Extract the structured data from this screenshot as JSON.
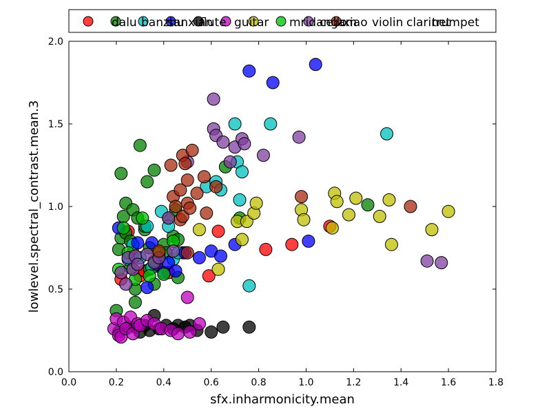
{
  "chart_data": {
    "type": "scatter",
    "title": "",
    "xlabel": "sfx.inharmonicity.mean",
    "ylabel": "lowlevel.spectral_contrast.mean.3",
    "xlim": [
      0.0,
      1.8
    ],
    "ylim": [
      0.0,
      2.0
    ],
    "xticks": [
      "0.0",
      "0.2",
      "0.4",
      "0.6",
      "0.8",
      "1.0",
      "1.2",
      "1.4",
      "1.6",
      "1.8"
    ],
    "yticks": [
      "0.0",
      "0.5",
      "1.0",
      "1.5",
      "2.0"
    ],
    "grid": false,
    "legend_position": "top",
    "series": [
      {
        "name": "dalu",
        "color": "#ff0000",
        "points": [
          [
            0.22,
            0.56
          ],
          [
            0.25,
            0.85
          ],
          [
            0.27,
            0.72
          ],
          [
            0.3,
            0.58
          ],
          [
            0.32,
            0.61
          ],
          [
            0.37,
            0.64
          ],
          [
            0.42,
            0.6
          ],
          [
            0.48,
            0.72
          ],
          [
            0.59,
            0.58
          ],
          [
            0.63,
            0.85
          ],
          [
            0.83,
            0.74
          ],
          [
            0.94,
            0.77
          ],
          [
            1.1,
            0.88
          ]
        ]
      },
      {
        "name": "banzhu",
        "color": "#008000",
        "points": [
          [
            0.2,
            0.37
          ],
          [
            0.21,
            0.74
          ],
          [
            0.22,
            0.81
          ],
          [
            0.22,
            1.2
          ],
          [
            0.23,
            0.94
          ],
          [
            0.24,
            0.84
          ],
          [
            0.24,
            1.02
          ],
          [
            0.26,
            0.79
          ],
          [
            0.26,
            0.63
          ],
          [
            0.27,
            0.98
          ],
          [
            0.28,
            0.42
          ],
          [
            0.28,
            0.5
          ],
          [
            0.29,
            0.93
          ],
          [
            0.3,
            1.37
          ],
          [
            0.32,
            0.86
          ],
          [
            0.32,
            0.88
          ],
          [
            0.33,
            1.15
          ],
          [
            0.34,
            0.75
          ],
          [
            0.34,
            0.62
          ],
          [
            0.36,
            0.53
          ],
          [
            0.36,
            1.22
          ],
          [
            0.38,
            0.69
          ],
          [
            0.4,
            0.77
          ],
          [
            0.41,
            0.72
          ],
          [
            0.42,
            0.93
          ],
          [
            0.44,
            0.82
          ],
          [
            0.45,
            0.98
          ],
          [
            0.46,
            0.57
          ],
          [
            0.46,
            0.8
          ],
          [
            0.66,
            1.24
          ],
          [
            0.72,
            0.93
          ],
          [
            1.26,
            1.01
          ]
        ]
      },
      {
        "name": "sanxian",
        "color": "#00bfbf",
        "points": [
          [
            0.25,
            0.68
          ],
          [
            0.27,
            0.77
          ],
          [
            0.3,
            0.69
          ],
          [
            0.33,
            0.88
          ],
          [
            0.35,
            0.63
          ],
          [
            0.39,
            0.97
          ],
          [
            0.42,
            0.88
          ],
          [
            0.44,
            0.68
          ],
          [
            0.46,
            0.72
          ],
          [
            0.58,
            1.12
          ],
          [
            0.62,
            1.15
          ],
          [
            0.64,
            1.1
          ],
          [
            0.7,
            1.5
          ],
          [
            0.71,
            1.27
          ],
          [
            0.72,
            1.04
          ],
          [
            0.73,
            1.21
          ],
          [
            0.76,
            0.52
          ],
          [
            0.85,
            1.5
          ],
          [
            1.34,
            1.44
          ]
        ]
      },
      {
        "name": "flute",
        "color": "#0000ff",
        "points": [
          [
            0.21,
            0.87
          ],
          [
            0.29,
            0.78
          ],
          [
            0.33,
            0.51
          ],
          [
            0.35,
            0.78
          ],
          [
            0.37,
            0.65
          ],
          [
            0.4,
            0.6
          ],
          [
            0.42,
            0.66
          ],
          [
            0.45,
            0.61
          ],
          [
            0.49,
            0.72
          ],
          [
            0.55,
            0.69
          ],
          [
            0.6,
            0.73
          ],
          [
            0.64,
            0.7
          ],
          [
            0.7,
            0.77
          ],
          [
            0.76,
            1.82
          ],
          [
            0.86,
            1.75
          ],
          [
            1.01,
            0.79
          ],
          [
            1.04,
            1.86
          ]
        ]
      },
      {
        "name": "guitar",
        "color": "#000000",
        "points": [
          [
            0.21,
            0.24
          ],
          [
            0.25,
            0.27
          ],
          [
            0.28,
            0.27
          ],
          [
            0.3,
            0.24
          ],
          [
            0.32,
            0.28
          ],
          [
            0.34,
            0.25
          ],
          [
            0.36,
            0.34
          ],
          [
            0.38,
            0.26
          ],
          [
            0.41,
            0.28
          ],
          [
            0.44,
            0.26
          ],
          [
            0.46,
            0.28
          ],
          [
            0.49,
            0.27
          ],
          [
            0.51,
            0.28
          ],
          [
            0.54,
            0.25
          ],
          [
            0.6,
            0.24
          ],
          [
            0.65,
            0.27
          ],
          [
            0.76,
            0.27
          ]
        ]
      },
      {
        "name": "mridangam",
        "color": "#bf00bf",
        "points": [
          [
            0.19,
            0.26
          ],
          [
            0.2,
            0.32
          ],
          [
            0.21,
            0.22
          ],
          [
            0.22,
            0.21
          ],
          [
            0.23,
            0.3
          ],
          [
            0.24,
            0.26
          ],
          [
            0.26,
            0.33
          ],
          [
            0.27,
            0.23
          ],
          [
            0.29,
            0.29
          ],
          [
            0.3,
            0.28
          ],
          [
            0.33,
            0.31
          ],
          [
            0.36,
            0.29
          ],
          [
            0.39,
            0.26
          ],
          [
            0.43,
            0.25
          ],
          [
            0.46,
            0.23
          ],
          [
            0.5,
            0.45
          ],
          [
            0.51,
            0.24
          ],
          [
            0.55,
            0.29
          ]
        ]
      },
      {
        "name": "cello",
        "color": "#bfbf00",
        "points": [
          [
            0.55,
            0.86
          ],
          [
            0.63,
            0.62
          ],
          [
            0.71,
            0.91
          ],
          [
            0.73,
            0.8
          ],
          [
            0.75,
            0.91
          ],
          [
            0.78,
            0.96
          ],
          [
            0.79,
            1.02
          ],
          [
            0.98,
            0.98
          ],
          [
            0.99,
            0.92
          ],
          [
            1.11,
            0.87
          ],
          [
            1.12,
            1.08
          ],
          [
            1.13,
            1.03
          ],
          [
            1.18,
            0.95
          ],
          [
            1.21,
            1.05
          ],
          [
            1.31,
            0.94
          ],
          [
            1.35,
            1.04
          ],
          [
            1.36,
            0.77
          ],
          [
            1.53,
            0.86
          ],
          [
            1.6,
            0.97
          ]
        ]
      },
      {
        "name": "xiao",
        "color": "#00bf00",
        "points": [
          [
            0.21,
            0.62
          ],
          [
            0.23,
            0.87
          ],
          [
            0.25,
            0.72
          ],
          [
            0.28,
            0.56
          ],
          [
            0.31,
            0.93
          ],
          [
            0.34,
            0.58
          ],
          [
            0.36,
            0.67
          ],
          [
            0.38,
            0.72
          ],
          [
            0.4,
            0.59
          ],
          [
            0.44,
            0.79
          ]
        ]
      },
      {
        "name": "violin",
        "color": "#7f3f9f",
        "points": [
          [
            0.22,
            0.6
          ],
          [
            0.24,
            0.53
          ],
          [
            0.25,
            0.69
          ],
          [
            0.27,
            0.62
          ],
          [
            0.28,
            0.7
          ],
          [
            0.29,
            0.65
          ],
          [
            0.33,
            0.71
          ],
          [
            0.36,
            0.66
          ],
          [
            0.38,
            0.69
          ],
          [
            0.42,
            0.93
          ],
          [
            0.44,
            0.73
          ],
          [
            0.5,
            1.27
          ],
          [
            0.61,
            1.65
          ],
          [
            0.61,
            1.47
          ],
          [
            0.62,
            1.43
          ],
          [
            0.65,
            1.39
          ],
          [
            0.68,
            1.27
          ],
          [
            0.7,
            1.36
          ],
          [
            0.73,
            1.41
          ],
          [
            0.74,
            1.38
          ],
          [
            0.82,
            1.31
          ],
          [
            0.97,
            1.42
          ],
          [
            1.51,
            0.67
          ],
          [
            1.57,
            0.66
          ]
        ]
      },
      {
        "name": "clarinet",
        "color": "#a52a0f",
        "points": [
          [
            0.38,
            0.73
          ],
          [
            0.43,
            1.25
          ],
          [
            0.44,
            1.06
          ],
          [
            0.45,
            1.0
          ],
          [
            0.47,
            0.92
          ],
          [
            0.47,
            1.1
          ],
          [
            0.48,
            0.94
          ],
          [
            0.48,
            1.31
          ],
          [
            0.49,
            1.26
          ],
          [
            0.5,
            0.72
          ],
          [
            0.5,
            1.16
          ],
          [
            0.5,
            1.02
          ],
          [
            0.51,
            0.99
          ],
          [
            0.52,
            1.34
          ],
          [
            0.54,
            1.08
          ],
          [
            0.57,
            1.18
          ],
          [
            0.58,
            0.96
          ],
          [
            0.62,
            1.12
          ],
          [
            0.98,
            1.06
          ],
          [
            1.44,
            1.0
          ]
        ]
      },
      {
        "name": "trumpet",
        "color": "#e8a400",
        "points": []
      }
    ]
  },
  "legend_entries": [
    "dalu",
    "banzhu",
    "sanxian",
    "flute",
    "guitar",
    "mridangam",
    "cello",
    "xiao",
    "violin",
    "clarinet",
    "trumpet"
  ]
}
